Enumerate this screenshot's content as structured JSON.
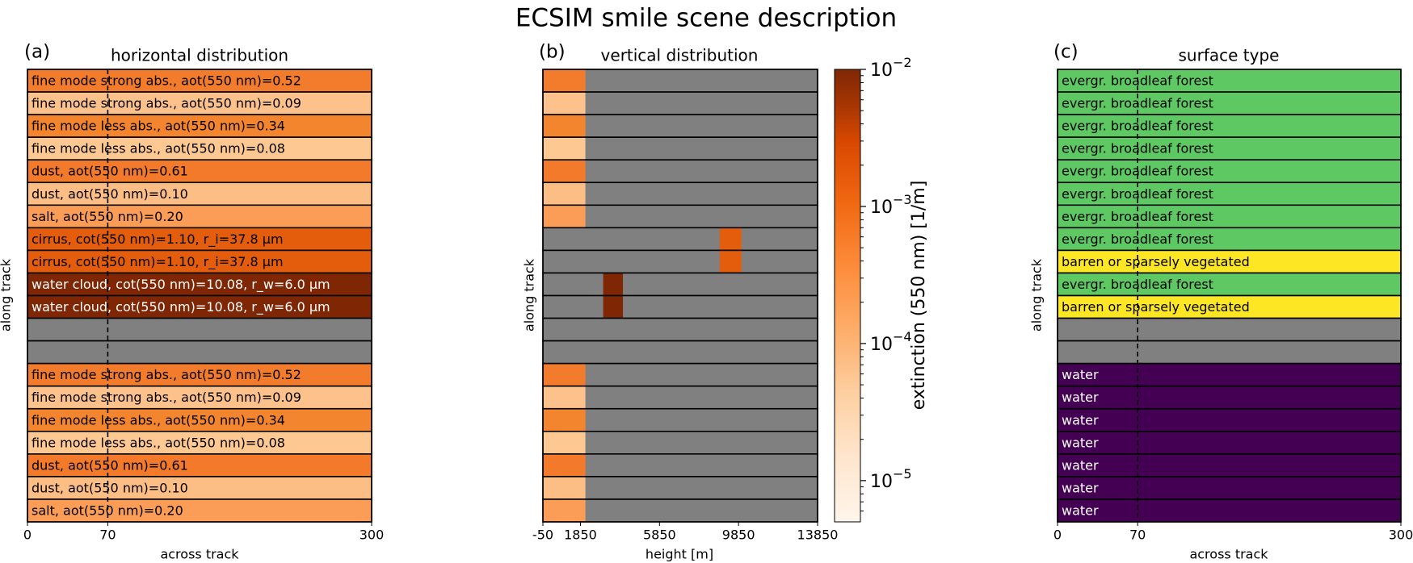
{
  "figure": {
    "title": "ECSIM smile scene description"
  },
  "colors": {
    "nodata": "#808080",
    "row_border": "#000000",
    "dashed_line": "#000000",
    "colormap": [
      "#fff5eb",
      "#fdd0a2",
      "#fdae6b",
      "#fd8d3c",
      "#f16913",
      "#d94801",
      "#a63603",
      "#7f2704"
    ]
  },
  "chart_data": [
    {
      "id": "a",
      "type": "table",
      "panel_label": "(a)",
      "title": "horizontal distribution",
      "xlabel": "across track",
      "ylabel": "along track",
      "xlim": [
        0,
        300
      ],
      "xticks": [
        "0",
        "70",
        "300"
      ],
      "xtick_values": [
        0,
        70,
        300
      ],
      "dashed_line_x": 70,
      "rows": [
        {
          "label": "fine mode strong abs., aot(550 nm)=0.52",
          "color": "#f37b2c",
          "text_color": "#000000"
        },
        {
          "label": "fine mode strong abs., aot(550 nm)=0.09",
          "color": "#fdc28c",
          "text_color": "#000000"
        },
        {
          "label": "fine mode less abs., aot(550 nm)=0.34",
          "color": "#f4852f",
          "text_color": "#000000"
        },
        {
          "label": "fine mode less abs., aot(550 nm)=0.08",
          "color": "#fdc891",
          "text_color": "#000000"
        },
        {
          "label": "dust, aot(550 nm)=0.61",
          "color": "#f27a2a",
          "text_color": "#000000"
        },
        {
          "label": "dust, aot(550 nm)=0.10",
          "color": "#fdbe85",
          "text_color": "#000000"
        },
        {
          "label": "salt, aot(550 nm)=0.20",
          "color": "#fb9d57",
          "text_color": "#000000"
        },
        {
          "label": "cirrus, cot(550 nm)=1.10, r_i=37.8 μm",
          "color": "#e35d0c",
          "text_color": "#000000"
        },
        {
          "label": "cirrus, cot(550 nm)=1.10, r_i=37.8 μm",
          "color": "#e35d0c",
          "text_color": "#000000"
        },
        {
          "label": "water cloud, cot(550 nm)=10.08, r_w=6.0 μm",
          "color": "#7f2704",
          "text_color": "#ffffff"
        },
        {
          "label": "water cloud, cot(550 nm)=10.08, r_w=6.0 μm",
          "color": "#7f2704",
          "text_color": "#ffffff"
        },
        {
          "label": "",
          "color": "#808080",
          "text_color": "#000000"
        },
        {
          "label": "",
          "color": "#808080",
          "text_color": "#000000"
        },
        {
          "label": "fine mode strong abs., aot(550 nm)=0.52",
          "color": "#f37b2c",
          "text_color": "#000000"
        },
        {
          "label": "fine mode strong abs., aot(550 nm)=0.09",
          "color": "#fdc28c",
          "text_color": "#000000"
        },
        {
          "label": "fine mode less abs., aot(550 nm)=0.34",
          "color": "#f4852f",
          "text_color": "#000000"
        },
        {
          "label": "fine mode less abs., aot(550 nm)=0.08",
          "color": "#fdc891",
          "text_color": "#000000"
        },
        {
          "label": "dust, aot(550 nm)=0.61",
          "color": "#f27a2a",
          "text_color": "#000000"
        },
        {
          "label": "dust, aot(550 nm)=0.10",
          "color": "#fdbe85",
          "text_color": "#000000"
        },
        {
          "label": "salt, aot(550 nm)=0.20",
          "color": "#fb9d57",
          "text_color": "#000000"
        }
      ]
    },
    {
      "id": "b",
      "type": "heatmap",
      "panel_label": "(b)",
      "title": "vertical distribution",
      "xlabel": "height [m]",
      "ylabel": "along track",
      "xlim": [
        -50,
        13850
      ],
      "xticks": [
        "-50",
        "1850",
        "5850",
        "9850",
        "13850"
      ],
      "xtick_values": [
        -50,
        1850,
        5850,
        9850,
        13850
      ],
      "rows": [
        {
          "segments": [
            {
              "from": -50,
              "to": 2100,
              "color": "#f37b2c"
            }
          ]
        },
        {
          "segments": [
            {
              "from": -50,
              "to": 2100,
              "color": "#fdc28c"
            }
          ]
        },
        {
          "segments": [
            {
              "from": -50,
              "to": 2100,
              "color": "#f4852f"
            }
          ]
        },
        {
          "segments": [
            {
              "from": -50,
              "to": 2100,
              "color": "#fdc891"
            }
          ]
        },
        {
          "segments": [
            {
              "from": -50,
              "to": 2100,
              "color": "#f27a2a"
            }
          ]
        },
        {
          "segments": [
            {
              "from": -50,
              "to": 2100,
              "color": "#fdbe85"
            }
          ]
        },
        {
          "segments": [
            {
              "from": -50,
              "to": 2100,
              "color": "#fb9d57"
            }
          ]
        },
        {
          "segments": [
            {
              "from": 8900,
              "to": 10000,
              "color": "#e35d0c"
            }
          ]
        },
        {
          "segments": [
            {
              "from": 8900,
              "to": 10000,
              "color": "#e35d0c"
            }
          ]
        },
        {
          "segments": [
            {
              "from": 3000,
              "to": 4000,
              "color": "#7f2704"
            }
          ]
        },
        {
          "segments": [
            {
              "from": 3000,
              "to": 4000,
              "color": "#7f2704"
            }
          ]
        },
        {
          "segments": []
        },
        {
          "segments": []
        },
        {
          "segments": [
            {
              "from": -50,
              "to": 2100,
              "color": "#f37b2c"
            }
          ]
        },
        {
          "segments": [
            {
              "from": -50,
              "to": 2100,
              "color": "#fdc28c"
            }
          ]
        },
        {
          "segments": [
            {
              "from": -50,
              "to": 2100,
              "color": "#f4852f"
            }
          ]
        },
        {
          "segments": [
            {
              "from": -50,
              "to": 2100,
              "color": "#fdc891"
            }
          ]
        },
        {
          "segments": [
            {
              "from": -50,
              "to": 2100,
              "color": "#f27a2a"
            }
          ]
        },
        {
          "segments": [
            {
              "from": -50,
              "to": 2100,
              "color": "#fdbe85"
            }
          ]
        },
        {
          "segments": [
            {
              "from": -50,
              "to": 2100,
              "color": "#fb9d57"
            }
          ]
        }
      ],
      "colorbar": {
        "label": "extinction (550 nm) [1/m]",
        "scale": "log",
        "range": [
          5e-06,
          0.01
        ],
        "ticks": [
          {
            "value": 0.01,
            "base": "10",
            "exp": "−2"
          },
          {
            "value": 0.001,
            "base": "10",
            "exp": "−3"
          },
          {
            "value": 0.0001,
            "base": "10",
            "exp": "−4"
          },
          {
            "value": 1e-05,
            "base": "10",
            "exp": "−5"
          }
        ]
      }
    },
    {
      "id": "c",
      "type": "table",
      "panel_label": "(c)",
      "title": "surface type",
      "xlabel": "across track",
      "ylabel": "along track",
      "xlim": [
        0,
        300
      ],
      "xticks": [
        "0",
        "70",
        "300"
      ],
      "xtick_values": [
        0,
        70,
        300
      ],
      "dashed_line_x": 70,
      "rows": [
        {
          "label": "evergr. broadleaf forest",
          "color": "#5ec962",
          "text_color": "#000000"
        },
        {
          "label": "evergr. broadleaf forest",
          "color": "#5ec962",
          "text_color": "#000000"
        },
        {
          "label": "evergr. broadleaf forest",
          "color": "#5ec962",
          "text_color": "#000000"
        },
        {
          "label": "evergr. broadleaf forest",
          "color": "#5ec962",
          "text_color": "#000000"
        },
        {
          "label": "evergr. broadleaf forest",
          "color": "#5ec962",
          "text_color": "#000000"
        },
        {
          "label": "evergr. broadleaf forest",
          "color": "#5ec962",
          "text_color": "#000000"
        },
        {
          "label": "evergr. broadleaf forest",
          "color": "#5ec962",
          "text_color": "#000000"
        },
        {
          "label": "evergr. broadleaf forest",
          "color": "#5ec962",
          "text_color": "#000000"
        },
        {
          "label": "barren or sparsely vegetated",
          "color": "#fde725",
          "text_color": "#000000"
        },
        {
          "label": "evergr. broadleaf forest",
          "color": "#5ec962",
          "text_color": "#000000"
        },
        {
          "label": "barren or sparsely vegetated",
          "color": "#fde725",
          "text_color": "#000000"
        },
        {
          "label": "",
          "color": "#808080",
          "text_color": "#000000"
        },
        {
          "label": "",
          "color": "#808080",
          "text_color": "#000000"
        },
        {
          "label": "water",
          "color": "#440154",
          "text_color": "#ffffff"
        },
        {
          "label": "water",
          "color": "#440154",
          "text_color": "#ffffff"
        },
        {
          "label": "water",
          "color": "#440154",
          "text_color": "#ffffff"
        },
        {
          "label": "water",
          "color": "#440154",
          "text_color": "#ffffff"
        },
        {
          "label": "water",
          "color": "#440154",
          "text_color": "#ffffff"
        },
        {
          "label": "water",
          "color": "#440154",
          "text_color": "#ffffff"
        },
        {
          "label": "water",
          "color": "#440154",
          "text_color": "#ffffff"
        }
      ]
    }
  ]
}
